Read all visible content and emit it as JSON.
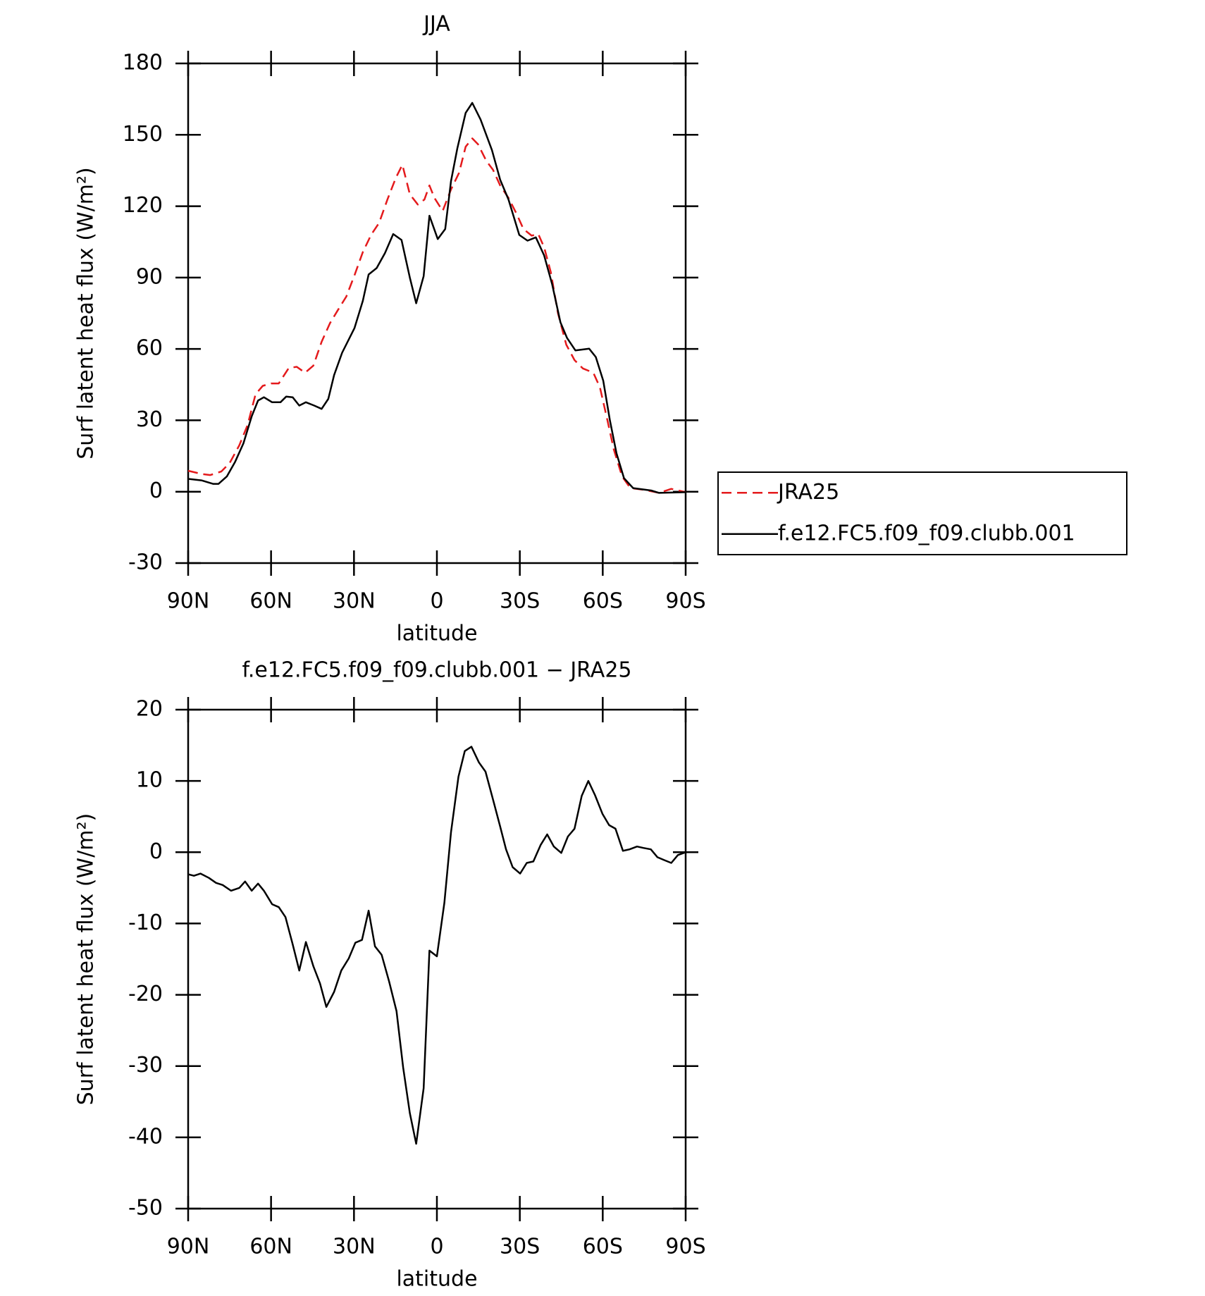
{
  "chart_data": [
    {
      "type": "line",
      "title": "JJA",
      "xlabel": "latitude",
      "ylabel": "Surf latent heat flux (W/m²)",
      "xlim": [
        90,
        -90
      ],
      "ylim": [
        -30,
        180
      ],
      "xticks": [
        {
          "value": 90,
          "label": "90N"
        },
        {
          "value": 60,
          "label": "60N"
        },
        {
          "value": 30,
          "label": "30N"
        },
        0,
        {
          "value": -30,
          "label": "30S"
        },
        {
          "value": -60,
          "label": "60S"
        },
        {
          "value": -90,
          "label": "90S"
        }
      ],
      "yticks": [
        -30,
        0,
        30,
        60,
        90,
        120,
        150,
        180
      ],
      "legend": "right",
      "series": [
        {
          "name": "JRA25",
          "color": "#e41a1c",
          "dash": true,
          "x": [
            90,
            85,
            82,
            78,
            75,
            71.5,
            68.5,
            65.6,
            63,
            60,
            57.2,
            53.6,
            50.7,
            47.7,
            44.7,
            41.7,
            38.7,
            35.8,
            32.8,
            29.8,
            26.8,
            23.8,
            20.9,
            17.9,
            14.9,
            12.5,
            9.8,
            6.9,
            4.5,
            2.7,
            0.9,
            -2.1,
            -5.1,
            -8,
            -10.4,
            -12.8,
            -14.9,
            -17.9,
            -20.3,
            -22.9,
            -25.9,
            -28.9,
            -31.3,
            -34.3,
            -36.7,
            -38.8,
            -41.2,
            -43.8,
            -46.8,
            -49.8,
            -52.8,
            -56.6,
            -59,
            -61.7,
            -64,
            -67,
            -70,
            -74.4,
            -80.4,
            -84.8,
            -90
          ],
          "values": [
            8.8,
            7.4,
            7,
            8.5,
            12,
            19.5,
            28,
            41,
            44.5,
            45.5,
            45.5,
            52,
            52.5,
            50,
            53,
            63,
            70.8,
            76.4,
            82,
            91,
            100.7,
            108,
            113,
            122.8,
            131.8,
            137.4,
            125,
            120.7,
            122.8,
            128.7,
            123.5,
            118,
            127,
            134,
            145,
            148.5,
            146,
            139,
            135.3,
            128.7,
            123.5,
            116.6,
            110.4,
            107.6,
            108.3,
            102.7,
            92.3,
            75,
            61.8,
            55.3,
            51.8,
            50,
            43.8,
            30,
            17.8,
            6.4,
            1.5,
            0.9,
            -0.5,
            1.2,
            -0.2
          ]
        },
        {
          "name": "f.e12.FC5.f09_f09.clubb.001",
          "color": "#000000",
          "dash": false,
          "x": [
            90,
            85,
            81,
            79,
            76,
            73,
            70,
            67,
            64.7,
            62.6,
            59.6,
            56.6,
            54.5,
            52.2,
            49.8,
            47.4,
            44.4,
            41.7,
            39.3,
            37.2,
            34.3,
            29.8,
            26.8,
            24.7,
            21.8,
            18.8,
            15.8,
            12.8,
            9.8,
            7.5,
            4.8,
            2.7,
            -0.3,
            -3,
            -5.1,
            -7.4,
            -10.4,
            -12.8,
            -15.8,
            -19.9,
            -22.9,
            -25.9,
            -29.8,
            -32.8,
            -35.8,
            -38.8,
            -41.7,
            -44.7,
            -47.1,
            -50.1,
            -55.1,
            -57.5,
            -60.2,
            -62.6,
            -65,
            -67.7,
            -71,
            -77.5,
            -80.4,
            -90
          ],
          "values": [
            5.4,
            4.7,
            3.3,
            3.3,
            6.4,
            12.6,
            20.3,
            31.7,
            38.3,
            39.7,
            37.6,
            37.6,
            40,
            39.7,
            36.2,
            37.6,
            36.2,
            34.8,
            39,
            49,
            58.4,
            68.8,
            80.2,
            91.3,
            94,
            100.3,
            108.3,
            105.8,
            90,
            79.2,
            90.6,
            116,
            106.2,
            110.4,
            130.5,
            144.3,
            159.2,
            163.4,
            156.4,
            143.6,
            131.1,
            122.8,
            107.9,
            105.5,
            106.9,
            99.3,
            87.1,
            71.2,
            64.6,
            59.4,
            60.1,
            56.6,
            46.6,
            30,
            16.1,
            5.7,
            1.5,
            0.5,
            -0.5,
            -0.2
          ]
        }
      ]
    },
    {
      "type": "line",
      "title": "f.e12.FC5.f09_f09.clubb.001 − JRA25",
      "xlabel": "latitude",
      "ylabel": "Surf latent heat flux (W/m²)",
      "xlim": [
        90,
        -90
      ],
      "ylim": [
        -50,
        20
      ],
      "xticks": [
        {
          "value": 90,
          "label": "90N"
        },
        {
          "value": 60,
          "label": "60N"
        },
        {
          "value": 30,
          "label": "30N"
        },
        0,
        {
          "value": -30,
          "label": "30S"
        },
        {
          "value": -60,
          "label": "60S"
        },
        {
          "value": -90,
          "label": "90S"
        }
      ],
      "yticks": [
        -50,
        -40,
        -30,
        -20,
        -10,
        0,
        10,
        20
      ],
      "series": [
        {
          "color": "#000000",
          "dash": false,
          "x": [
            90,
            87.9,
            85.5,
            82.5,
            79.9,
            77.5,
            74.5,
            71.5,
            69.4,
            67,
            64.7,
            62.6,
            59.6,
            57.2,
            54.8,
            52.2,
            49.8,
            47.4,
            44.7,
            42.3,
            40,
            37.2,
            34.6,
            31.9,
            29.5,
            27.1,
            24.7,
            22.4,
            20,
            17.3,
            14.6,
            12.2,
            9.8,
            7.5,
            4.8,
            2.7,
            0,
            -2.7,
            -5.1,
            -7.8,
            -10.1,
            -12.5,
            -15.2,
            -17.6,
            -20.3,
            -22.9,
            -25,
            -27.4,
            -30.1,
            -32.5,
            -34.9,
            -37.5,
            -39.9,
            -42.3,
            -45,
            -47.4,
            -49.8,
            -52.4,
            -54.8,
            -57.2,
            -59.9,
            -62.3,
            -64.6,
            -67.3,
            -69.7,
            -72.4,
            -74.7,
            -77.4,
            -79.8,
            -82.2,
            -84.8,
            -87.2,
            -90
          ],
          "values": [
            -3.1,
            -3.3,
            -3,
            -3.6,
            -4.3,
            -4.6,
            -5.4,
            -5,
            -4.1,
            -5.4,
            -4.4,
            -5.4,
            -7.3,
            -7.7,
            -9.1,
            -12.9,
            -16.6,
            -12.6,
            -16,
            -18.4,
            -21.7,
            -19.6,
            -16.6,
            -14.9,
            -12.7,
            -12.3,
            -8.2,
            -13.2,
            -14.4,
            -18.1,
            -22.3,
            -30.2,
            -36.6,
            -40.9,
            -33.1,
            -13.8,
            -14.6,
            -7.1,
            2.8,
            10.6,
            14.2,
            14.8,
            12.6,
            11.3,
            7.4,
            3.6,
            0.4,
            -2.1,
            -3,
            -1.5,
            -1.3,
            1,
            2.5,
            0.8,
            -0.1,
            2.2,
            3.3,
            7.9,
            10,
            8,
            5.4,
            3.8,
            3.3,
            0.2,
            0.4,
            0.8,
            0.6,
            0.4,
            -0.7,
            -1.1,
            -1.5,
            -0.4,
            0
          ]
        }
      ]
    }
  ]
}
